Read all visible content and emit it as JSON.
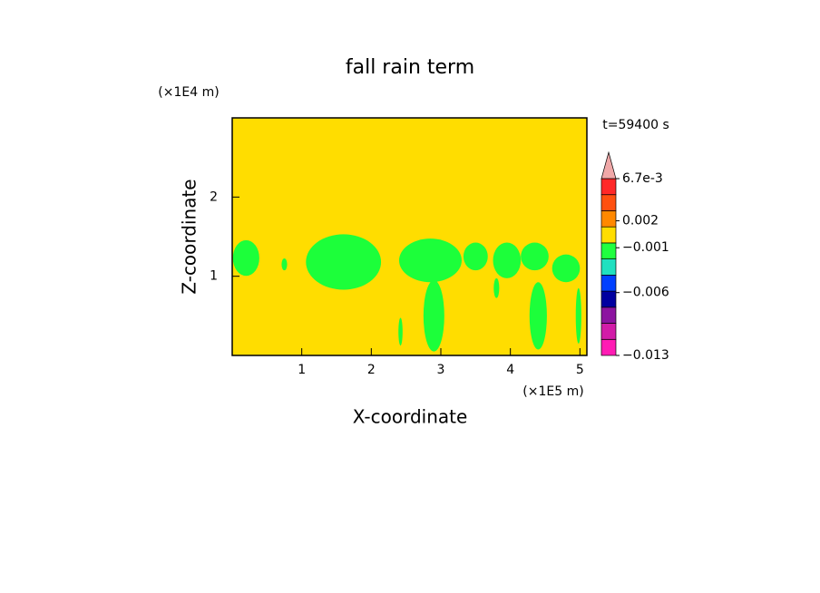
{
  "chart_data": {
    "type": "contour",
    "title": "fall rain term",
    "x_label": "X-coordinate",
    "y_label": "Z-coordinate",
    "x_unit": "(×1E5 m)",
    "y_unit": "(×1E4 m)",
    "annotation": "t=59400 s",
    "xlim": [
      0,
      5.1
    ],
    "ylim": [
      0,
      3
    ],
    "xticks": [
      1,
      2,
      3,
      4,
      5
    ],
    "yticks": [
      1,
      2
    ],
    "background_color": "#ffdd00",
    "patch_color": "#1cff3a",
    "patches": [
      {
        "x": 0.2,
        "z": 1.23,
        "width": 0.38,
        "height": 0.45
      },
      {
        "x": 0.75,
        "z": 1.15,
        "width": 0.08,
        "height": 0.15
      },
      {
        "x": 1.6,
        "z": 1.18,
        "width": 1.08,
        "height": 0.7
      },
      {
        "x": 2.85,
        "z": 1.2,
        "width": 0.9,
        "height": 0.55
      },
      {
        "x": 2.9,
        "z": 0.5,
        "width": 0.3,
        "height": 0.9
      },
      {
        "x": 3.5,
        "z": 1.25,
        "width": 0.35,
        "height": 0.35
      },
      {
        "x": 3.95,
        "z": 1.2,
        "width": 0.4,
        "height": 0.45
      },
      {
        "x": 4.35,
        "z": 1.25,
        "width": 0.4,
        "height": 0.35
      },
      {
        "x": 4.4,
        "z": 0.5,
        "width": 0.25,
        "height": 0.85
      },
      {
        "x": 4.8,
        "z": 1.1,
        "width": 0.4,
        "height": 0.35
      },
      {
        "x": 4.98,
        "z": 0.5,
        "width": 0.08,
        "height": 0.7
      },
      {
        "x": 2.42,
        "z": 0.3,
        "width": 0.06,
        "height": 0.35
      },
      {
        "x": 3.8,
        "z": 0.85,
        "width": 0.08,
        "height": 0.25
      }
    ],
    "colorbar": {
      "clim": [
        -0.013,
        0.0067
      ],
      "ticks": [
        {
          "value": -0.013,
          "label": "−0.013"
        },
        {
          "value": -0.006,
          "label": "−0.006"
        },
        {
          "value": -0.001,
          "label": "−0.001"
        },
        {
          "value": 0.002,
          "label": "0.002"
        },
        {
          "value": 0.0067,
          "label": "6.7e-3"
        }
      ],
      "colors": [
        "#ff1cb4",
        "#d21ca8",
        "#8c14a0",
        "#0000a0",
        "#0040ff",
        "#20e0c0",
        "#20ff40",
        "#ffdd00",
        "#ff8800",
        "#ff5010",
        "#ff2828"
      ],
      "extend_color": "#f0a8a8"
    }
  }
}
